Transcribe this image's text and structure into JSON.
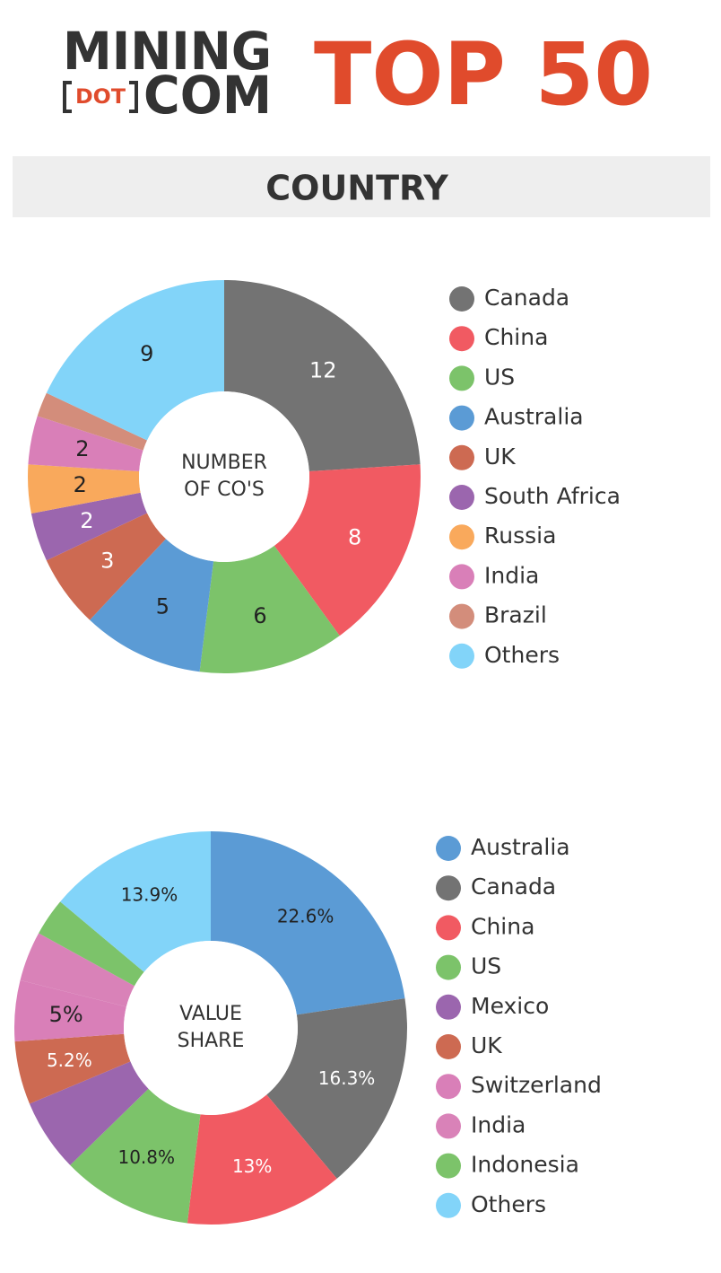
{
  "header": {
    "logo_top": "MINING",
    "logo_dot": "DOT",
    "logo_bottom": "COM",
    "title": "TOP 50"
  },
  "section_title": "COUNTRY",
  "chart_data": [
    {
      "type": "donut",
      "center_label": [
        "NUMBER",
        "OF CO'S"
      ],
      "categories": [
        "Canada",
        "China",
        "US",
        "Australia",
        "UK",
        "South Africa",
        "Russia",
        "India",
        "Brazil",
        "Others"
      ],
      "values": [
        12,
        8,
        6,
        5,
        3,
        2,
        2,
        2,
        1,
        9
      ],
      "value_labels": [
        "12",
        "8",
        "6",
        "5",
        "3",
        "2",
        "2",
        "2",
        null,
        "9"
      ],
      "colors": [
        "#737373",
        "#f15a62",
        "#7cc36a",
        "#5b9bd5",
        "#cd6a52",
        "#9b66ae",
        "#f9a95c",
        "#d97fb8",
        "#d38d7b",
        "#82d4f9"
      ]
    },
    {
      "type": "donut",
      "center_label": [
        "VALUE",
        "SHARE"
      ],
      "categories": [
        "Australia",
        "Canada",
        "China",
        "US",
        "Mexico",
        "UK",
        "Switzerland",
        "India",
        "Indonesia",
        "Others"
      ],
      "values": [
        22.6,
        16.3,
        13,
        10.8,
        6.0,
        5.2,
        5,
        4.1,
        3.1,
        13.9
      ],
      "value_labels": [
        "22.6%",
        "16.3%",
        "13%",
        "10.8%",
        null,
        "5.2%",
        "5%",
        null,
        null,
        "13.9%"
      ],
      "colors": [
        "#5b9bd5",
        "#737373",
        "#f15a62",
        "#7cc36a",
        "#9b66ae",
        "#cd6a52",
        "#d97fb8",
        "#d982b8",
        "#7cc36a",
        "#82d4f9"
      ]
    }
  ]
}
